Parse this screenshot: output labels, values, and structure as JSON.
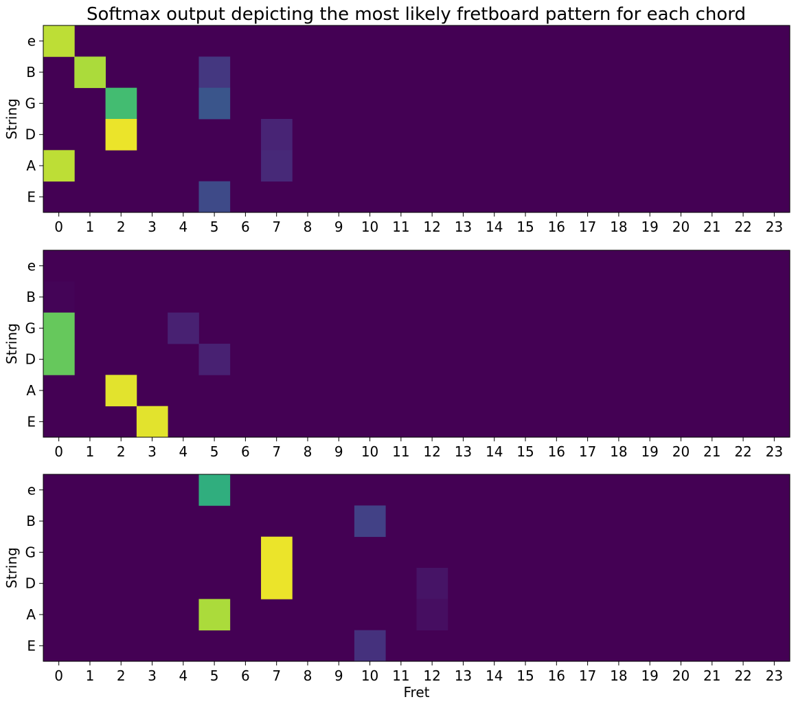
{
  "chart_data": {
    "type": "heatmap",
    "title": "Softmax output depicting the most likely fretboard pattern for each chord",
    "colormap": "viridis",
    "x_categories": [
      "0",
      "1",
      "2",
      "3",
      "4",
      "5",
      "6",
      "7",
      "8",
      "9",
      "10",
      "11",
      "12",
      "13",
      "14",
      "15",
      "16",
      "17",
      "18",
      "19",
      "20",
      "21",
      "22",
      "23"
    ],
    "y_categories": [
      "e",
      "B",
      "G",
      "D",
      "A",
      "E"
    ],
    "panels": [
      {
        "ylabel": "String",
        "xlabel": "",
        "cells": [
          {
            "string": "e",
            "fret": 0,
            "value": 0.93
          },
          {
            "string": "B",
            "fret": 1,
            "value": 0.91
          },
          {
            "string": "B",
            "fret": 5,
            "value": 0.2
          },
          {
            "string": "G",
            "fret": 2,
            "value": 0.77
          },
          {
            "string": "G",
            "fret": 5,
            "value": 0.33
          },
          {
            "string": "D",
            "fret": 2,
            "value": 0.98
          },
          {
            "string": "D",
            "fret": 7,
            "value": 0.13
          },
          {
            "string": "A",
            "fret": 0,
            "value": 0.93
          },
          {
            "string": "A",
            "fret": 7,
            "value": 0.15
          },
          {
            "string": "E",
            "fret": 5,
            "value": 0.28
          }
        ]
      },
      {
        "ylabel": "String",
        "xlabel": "",
        "cells": [
          {
            "string": "B",
            "fret": 0,
            "value": 0.01
          },
          {
            "string": "G",
            "fret": 0,
            "value": 0.82
          },
          {
            "string": "G",
            "fret": 4,
            "value": 0.12
          },
          {
            "string": "D",
            "fret": 0,
            "value": 0.82
          },
          {
            "string": "D",
            "fret": 5,
            "value": 0.12
          },
          {
            "string": "A",
            "fret": 2,
            "value": 0.97
          },
          {
            "string": "E",
            "fret": 3,
            "value": 0.97
          }
        ]
      },
      {
        "ylabel": "String",
        "xlabel": "Fret",
        "cells": [
          {
            "string": "e",
            "fret": 5,
            "value": 0.72
          },
          {
            "string": "B",
            "fret": 10,
            "value": 0.24
          },
          {
            "string": "G",
            "fret": 7,
            "value": 0.98
          },
          {
            "string": "D",
            "fret": 7,
            "value": 0.98
          },
          {
            "string": "D",
            "fret": 12,
            "value": 0.07
          },
          {
            "string": "A",
            "fret": 5,
            "value": 0.91
          },
          {
            "string": "A",
            "fret": 12,
            "value": 0.05
          },
          {
            "string": "E",
            "fret": 10,
            "value": 0.18
          }
        ]
      }
    ]
  }
}
